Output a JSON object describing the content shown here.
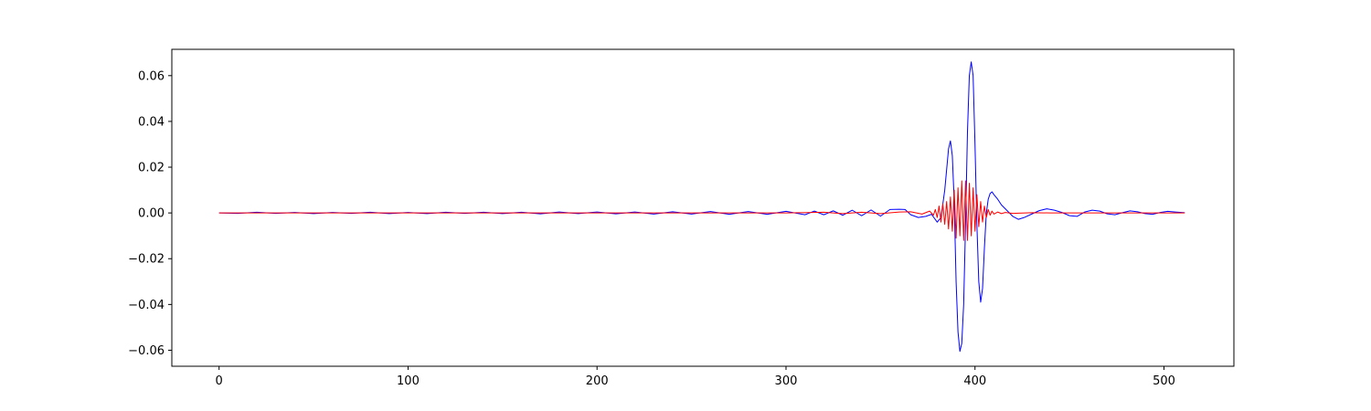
{
  "chart_data": {
    "type": "line",
    "title": "",
    "xlabel": "",
    "ylabel": "",
    "xlim": [
      -25,
      537
    ],
    "ylim": [
      -0.067,
      0.0715
    ],
    "grid": false,
    "legend": "none",
    "x_ticks": [
      {
        "value": 0,
        "label": "0"
      },
      {
        "value": 100,
        "label": "100"
      },
      {
        "value": 200,
        "label": "200"
      },
      {
        "value": 300,
        "label": "300"
      },
      {
        "value": 400,
        "label": "400"
      },
      {
        "value": 500,
        "label": "500"
      }
    ],
    "y_ticks": [
      {
        "value": 0.06,
        "label": "0.06"
      },
      {
        "value": 0.04,
        "label": "0.04"
      },
      {
        "value": 0.02,
        "label": "0.02"
      },
      {
        "value": 0.0,
        "label": "0.00"
      },
      {
        "value": -0.02,
        "label": "−0.02"
      },
      {
        "value": -0.04,
        "label": "−0.04"
      },
      {
        "value": -0.06,
        "label": "−0.06"
      }
    ],
    "series": [
      {
        "color": "#0000ff",
        "points": [
          [
            0,
            0.0
          ],
          [
            10,
            -0.0002
          ],
          [
            20,
            0.0003
          ],
          [
            30,
            -0.0002
          ],
          [
            40,
            0.0002
          ],
          [
            50,
            -0.0003
          ],
          [
            60,
            0.0002
          ],
          [
            70,
            -0.0002
          ],
          [
            80,
            0.0003
          ],
          [
            90,
            -0.0003
          ],
          [
            100,
            0.0002
          ],
          [
            110,
            -0.0003
          ],
          [
            120,
            0.0003
          ],
          [
            130,
            -0.0002
          ],
          [
            140,
            0.0003
          ],
          [
            150,
            -0.0003
          ],
          [
            160,
            0.0003
          ],
          [
            170,
            -0.0004
          ],
          [
            180,
            0.0004
          ],
          [
            190,
            -0.0003
          ],
          [
            200,
            0.0004
          ],
          [
            210,
            -0.0004
          ],
          [
            220,
            0.0004
          ],
          [
            230,
            -0.0005
          ],
          [
            240,
            0.0005
          ],
          [
            250,
            -0.0005
          ],
          [
            260,
            0.0006
          ],
          [
            270,
            -0.0006
          ],
          [
            280,
            0.0006
          ],
          [
            290,
            -0.0006
          ],
          [
            300,
            0.0007
          ],
          [
            310,
            -0.0008
          ],
          [
            315,
            0.0008
          ],
          [
            320,
            -0.0008
          ],
          [
            325,
            0.0009
          ],
          [
            330,
            -0.001
          ],
          [
            335,
            0.0012
          ],
          [
            340,
            -0.0012
          ],
          [
            345,
            0.0013
          ],
          [
            350,
            -0.0014
          ],
          [
            355,
            0.0015
          ],
          [
            360,
            0.0016
          ],
          [
            363,
            0.0015
          ],
          [
            366,
            -0.0008
          ],
          [
            370,
            -0.002
          ],
          [
            374,
            -0.0015
          ],
          [
            377,
            -0.0006
          ],
          [
            380,
            -0.004
          ],
          [
            382,
            -0.002
          ],
          [
            384,
            0.01
          ],
          [
            386,
            0.028
          ],
          [
            387,
            0.0315
          ],
          [
            388,
            0.025
          ],
          [
            389,
            0.005
          ],
          [
            390,
            -0.03
          ],
          [
            391,
            -0.052
          ],
          [
            392,
            -0.0605
          ],
          [
            393,
            -0.057
          ],
          [
            394,
            -0.04
          ],
          [
            395,
            -0.005
          ],
          [
            396,
            0.035
          ],
          [
            397,
            0.06
          ],
          [
            398,
            0.066
          ],
          [
            399,
            0.06
          ],
          [
            400,
            0.03
          ],
          [
            401,
            -0.005
          ],
          [
            402,
            -0.03
          ],
          [
            403,
            -0.039
          ],
          [
            404,
            -0.033
          ],
          [
            405,
            -0.015
          ],
          [
            406,
            0.0
          ],
          [
            407,
            0.006
          ],
          [
            408,
            0.0085
          ],
          [
            409,
            0.0092
          ],
          [
            410,
            0.008
          ],
          [
            412,
            0.006
          ],
          [
            414,
            0.0035
          ],
          [
            417,
            0.001
          ],
          [
            420,
            -0.0015
          ],
          [
            423,
            -0.0028
          ],
          [
            426,
            -0.002
          ],
          [
            430,
            -0.0005
          ],
          [
            434,
            0.001
          ],
          [
            438,
            0.0018
          ],
          [
            442,
            0.0012
          ],
          [
            446,
            0.0002
          ],
          [
            450,
            -0.0012
          ],
          [
            454,
            -0.0015
          ],
          [
            458,
            0.0004
          ],
          [
            462,
            0.0012
          ],
          [
            466,
            0.0008
          ],
          [
            470,
            -0.0004
          ],
          [
            474,
            -0.0008
          ],
          [
            478,
            0.0001
          ],
          [
            482,
            0.0009
          ],
          [
            486,
            0.0005
          ],
          [
            490,
            -0.0003
          ],
          [
            494,
            -0.0006
          ],
          [
            498,
            0.0002
          ],
          [
            502,
            0.0007
          ],
          [
            506,
            0.0004
          ],
          [
            511,
            0.0001
          ]
        ]
      },
      {
        "color": "#ff0000",
        "points": [
          [
            0,
            0.0
          ],
          [
            300,
            0.0
          ],
          [
            320,
            0.0003
          ],
          [
            330,
            -0.0003
          ],
          [
            340,
            0.0003
          ],
          [
            350,
            -0.0003
          ],
          [
            360,
            0.0004
          ],
          [
            366,
            0.0005
          ],
          [
            372,
            -0.0005
          ],
          [
            376,
            0.0008
          ],
          [
            378,
            -0.001
          ],
          [
            379,
            0.0015
          ],
          [
            380,
            -0.002
          ],
          [
            381,
            0.003
          ],
          [
            382,
            -0.004
          ],
          [
            383,
            0.004
          ],
          [
            384,
            -0.005
          ],
          [
            385,
            0.005
          ],
          [
            386,
            -0.007
          ],
          [
            387,
            0.007
          ],
          [
            388,
            -0.008
          ],
          [
            389,
            0.01
          ],
          [
            390,
            -0.011
          ],
          [
            391,
            0.011
          ],
          [
            392,
            -0.01
          ],
          [
            393,
            0.014
          ],
          [
            394,
            -0.012
          ],
          [
            395,
            0.014
          ],
          [
            396,
            -0.012
          ],
          [
            397,
            0.013
          ],
          [
            398,
            -0.01
          ],
          [
            399,
            0.011
          ],
          [
            400,
            -0.008
          ],
          [
            401,
            0.008
          ],
          [
            402,
            -0.006
          ],
          [
            403,
            0.005
          ],
          [
            404,
            -0.004
          ],
          [
            405,
            0.003
          ],
          [
            406,
            -0.002
          ],
          [
            407,
            0.0015
          ],
          [
            408,
            -0.001
          ],
          [
            409,
            0.0008
          ],
          [
            410,
            -0.0005
          ],
          [
            412,
            0.0004
          ],
          [
            414,
            -0.0003
          ],
          [
            416,
            0.0002
          ],
          [
            420,
            -0.0002
          ],
          [
            430,
            0.0001
          ],
          [
            440,
            0.0
          ],
          [
            511,
            0.0
          ]
        ]
      }
    ]
  }
}
